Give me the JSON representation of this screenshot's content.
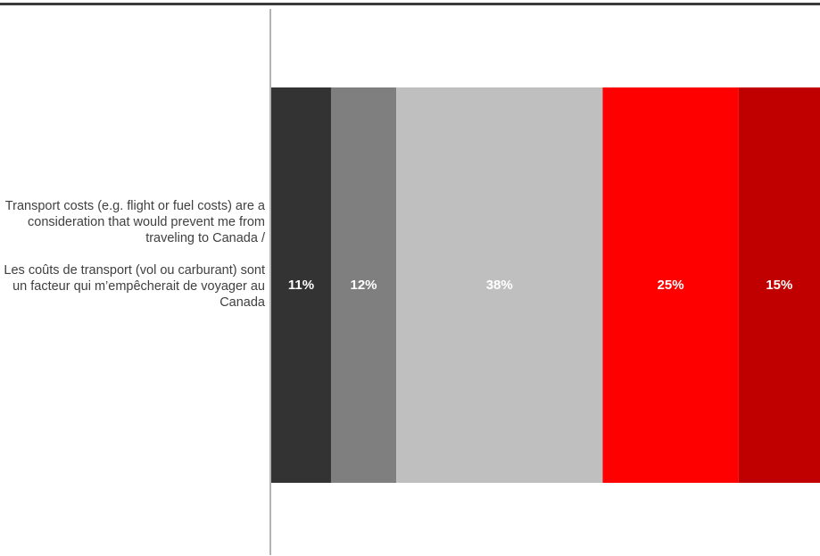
{
  "chart_data": {
    "type": "bar",
    "orientation": "horizontal-stacked",
    "categories": [
      "Transport costs (e.g. flight or fuel costs) are a consideration that would prevent me from traveling to Canada /\n\nLes coûts de transport (vol ou carburant) sont un facteur qui m’empêcherait de voyager au Canada"
    ],
    "category_label": {
      "english": "Transport costs (e.g. flight or fuel costs) are a consideration that would prevent me from traveling to Canada /",
      "french": "Les coûts de transport (vol ou carburant) sont un facteur qui m’empêcherait de voyager au Canada"
    },
    "series": [
      {
        "values": [
          11
        ],
        "label": "11%",
        "color": "#333333"
      },
      {
        "values": [
          12
        ],
        "label": "12%",
        "color": "#7f7f7f"
      },
      {
        "values": [
          38
        ],
        "label": "38%",
        "color": "#bfbfbf"
      },
      {
        "values": [
          25
        ],
        "label": "25%",
        "color": "#ff0000"
      },
      {
        "values": [
          15
        ],
        "label": "15%",
        "color": "#c00000"
      }
    ],
    "xlim": [
      0,
      100
    ],
    "label_color": "#ffffff",
    "grid": false,
    "legend": "none"
  }
}
